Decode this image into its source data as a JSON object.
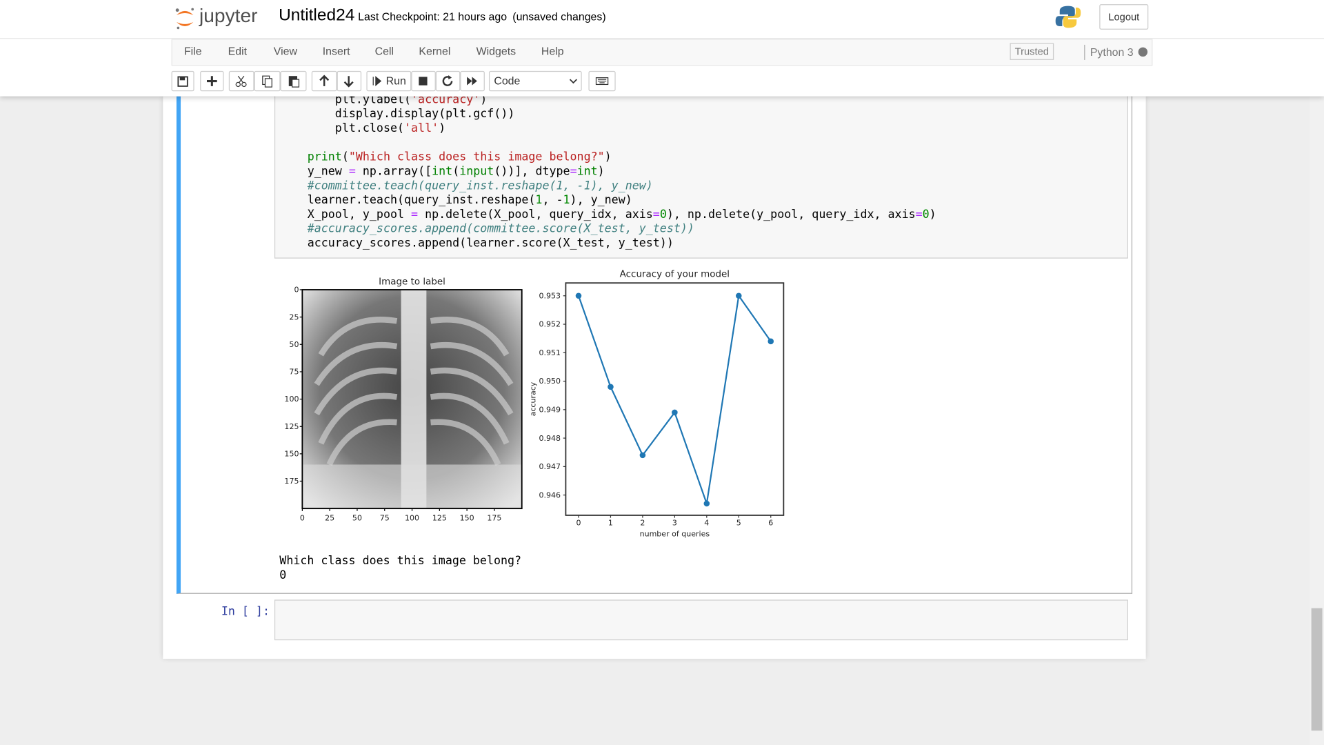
{
  "header": {
    "logo": "jupyter",
    "notebook_name": "Untitled24",
    "checkpoint": "Last Checkpoint: 21 hours ago",
    "unsaved": "(unsaved changes)",
    "logout": "Logout"
  },
  "menu": {
    "items": [
      "File",
      "Edit",
      "View",
      "Insert",
      "Cell",
      "Kernel",
      "Widgets",
      "Help"
    ],
    "trusted": "Trusted",
    "kernel": "Python 3"
  },
  "toolbar": {
    "run": "Run",
    "cell_type": "Code"
  },
  "code_blocks": [
    [
      "    plt.ylabel('accuracy')",
      "    display.display(plt.gcf())",
      "    plt.close('all')"
    ],
    [
      "print(\"Which class does this image belong?\")",
      "y_new = np.array([int(input())], dtype=int)",
      "#committee.teach(query_inst.reshape(1, -1), y_new)",
      "learner.teach(query_inst.reshape(1, -1), y_new)",
      "X_pool, y_pool = np.delete(X_pool, query_idx, axis=0), np.delete(y_pool, query_idx, axis=0)",
      "#accuracy_scores.append(committee.score(X_test, y_test))",
      "accuracy_scores.append(learner.score(X_test, y_test))"
    ]
  ],
  "image_plot": {
    "title": "Image to label",
    "xlim": [
      0,
      200
    ],
    "ylim": [
      0,
      200
    ],
    "xticks": [
      0,
      25,
      50,
      75,
      100,
      125,
      150,
      175
    ],
    "yticks": [
      0,
      25,
      50,
      75,
      100,
      125,
      150,
      175
    ]
  },
  "chart_data": {
    "type": "line",
    "title": "Accuracy of your model",
    "xlabel": "number of queries",
    "ylabel": "accuracy",
    "x": [
      0,
      1,
      2,
      3,
      4,
      5,
      6
    ],
    "series": [
      {
        "color": "#1f77b4",
        "values": [
          0.953,
          0.9498,
          0.9474,
          0.9489,
          0.9457,
          0.953,
          0.9514
        ]
      }
    ],
    "xlim": [
      -0.4,
      6.4
    ],
    "ylim": [
      0.94529,
      0.95345
    ],
    "xticks": [
      0,
      1,
      2,
      3,
      4,
      5,
      6
    ],
    "yticks": [
      0.946,
      0.947,
      0.948,
      0.949,
      0.95,
      {
        "value": 0.95,
        "label": "0.950"
      },
      0.951,
      0.952,
      0.953
    ]
  },
  "output_text": [
    "Which class does this image belong?",
    "0"
  ],
  "next_cell": {
    "prompt": "In [ ]:"
  }
}
